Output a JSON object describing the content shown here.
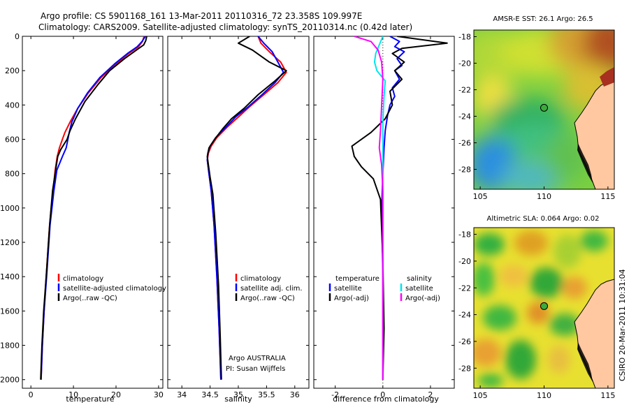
{
  "header": {
    "line1": "Argo profile: CS 5901168_161 13-Mar-2011 20110316_72 23.358S 109.997E",
    "line2": "Climatology: CARS2009. Satellite-adjusted climatology: synTS_20110314.nc (0.42d later)"
  },
  "colors": {
    "climatology": "#ff0000",
    "satellite": "#0000ff",
    "argo": "#000000",
    "salinity_satellite": "#00e5ee",
    "salinity_argo": "#ff00ff",
    "land": "#ffc8a0",
    "coast": "#000000"
  },
  "chart_data": [
    {
      "id": "temperature",
      "type": "line",
      "xlabel": "temperature",
      "xlim": [
        -2,
        31
      ],
      "xticks": [
        0,
        10,
        20,
        30
      ],
      "ylim": [
        0,
        2050
      ],
      "yreversed": true,
      "yticks": [
        0,
        200,
        400,
        600,
        800,
        1000,
        1200,
        1400,
        1600,
        1800,
        2000
      ],
      "legend": [
        "climatology",
        "satellite-adjusted climatology",
        "Argo(..raw -QC)"
      ],
      "series": [
        {
          "name": "climatology",
          "color": "#ff0000",
          "x": [
            26.6,
            26.2,
            25.3,
            23.0,
            20.0,
            16.5,
            13.5,
            11.0,
            9.2,
            8.0,
            7.4,
            6.7,
            6.2,
            5.7,
            5.2,
            4.4,
            3.6,
            3.1,
            2.7,
            2.4
          ],
          "y": [
            0,
            30,
            60,
            100,
            160,
            240,
            330,
            420,
            500,
            560,
            600,
            650,
            700,
            780,
            900,
            1100,
            1400,
            1600,
            1800,
            2000
          ]
        },
        {
          "name": "satellite-adjusted climatology",
          "color": "#0000ff",
          "x": [
            26.9,
            26.1,
            25.0,
            22.7,
            19.7,
            16.2,
            13.3,
            11.0,
            9.6,
            9.0,
            8.7,
            8.3,
            7.4,
            6.1,
            5.4,
            4.5,
            3.7,
            3.1,
            2.7,
            2.4
          ],
          "y": [
            0,
            30,
            60,
            100,
            160,
            240,
            330,
            420,
            500,
            560,
            600,
            650,
            700,
            780,
            900,
            1100,
            1400,
            1600,
            1800,
            2000
          ]
        },
        {
          "name": "Argo(..raw -QC)",
          "color": "#000000",
          "x": [
            27.2,
            27.0,
            26.5,
            24.8,
            22.0,
            18.5,
            15.8,
            12.7,
            10.5,
            9.2,
            8.5,
            7.0,
            6.3,
            6.0,
            5.7,
            5.1,
            4.4,
            3.6,
            3.0,
            2.6,
            2.3
          ],
          "y": [
            0,
            25,
            50,
            80,
            130,
            200,
            280,
            380,
            480,
            550,
            600,
            660,
            700,
            750,
            800,
            900,
            1100,
            1400,
            1600,
            1800,
            2000
          ]
        }
      ]
    },
    {
      "id": "salinity",
      "type": "line",
      "xlabel": "salinity",
      "xlim": [
        33.75,
        36.25
      ],
      "xticks": [
        34,
        34.5,
        35,
        35.5,
        36
      ],
      "ylim": [
        0,
        2050
      ],
      "yreversed": true,
      "legend": [
        "climatology",
        "satellite adj. clim.",
        "Argo(..raw -QC)"
      ],
      "annotations": [
        "Argo AUSTRALIA",
        "PI: Susan Wijffels"
      ],
      "series": [
        {
          "name": "climatology",
          "color": "#ff0000",
          "x": [
            35.35,
            35.4,
            35.55,
            35.75,
            35.85,
            35.7,
            35.45,
            35.2,
            35.0,
            34.8,
            34.62,
            34.52,
            34.47,
            34.45,
            34.48,
            34.52,
            34.57,
            34.62,
            34.66,
            34.69
          ],
          "y": [
            0,
            40,
            90,
            150,
            210,
            270,
            340,
            410,
            470,
            530,
            590,
            640,
            680,
            720,
            800,
            900,
            1100,
            1400,
            1700,
            2000
          ]
        },
        {
          "name": "satellite adj. clim.",
          "color": "#0000ff",
          "x": [
            35.35,
            35.45,
            35.6,
            35.7,
            35.8,
            35.65,
            35.42,
            35.18,
            34.95,
            34.78,
            34.6,
            34.5,
            34.46,
            34.45,
            34.48,
            34.52,
            34.57,
            34.62,
            34.66,
            34.69
          ],
          "y": [
            0,
            40,
            90,
            150,
            210,
            270,
            340,
            410,
            470,
            530,
            590,
            640,
            680,
            720,
            800,
            900,
            1100,
            1400,
            1700,
            2000
          ]
        },
        {
          "name": "Argo(..raw -QC)",
          "color": "#000000",
          "x": [
            35.2,
            35.0,
            35.25,
            35.55,
            35.85,
            35.65,
            35.35,
            35.1,
            34.88,
            34.72,
            34.58,
            34.48,
            34.45,
            34.47,
            34.5,
            34.55,
            34.6,
            34.65,
            34.68,
            34.7
          ],
          "y": [
            0,
            40,
            80,
            150,
            200,
            260,
            340,
            420,
            480,
            540,
            600,
            650,
            700,
            750,
            820,
            920,
            1150,
            1450,
            1750,
            2000
          ]
        }
      ]
    },
    {
      "id": "difference",
      "type": "line",
      "xlabel": "difference from climatology",
      "xlim": [
        -2.9,
        3.0
      ],
      "xticks": [
        -2,
        0,
        2
      ],
      "ylim": [
        0,
        2050
      ],
      "yreversed": true,
      "zero_line": true,
      "legend": [
        "temperature",
        "satellite",
        "Argo(-adj)",
        "salinity",
        "satellite",
        "Argo(-adj)"
      ],
      "series": [
        {
          "name": "satellite",
          "quantity": "temperature",
          "color": "#0000ff",
          "x": [
            0.3,
            0.7,
            0.5,
            0.9,
            0.6,
            0.8,
            0.5,
            0.7,
            0.4,
            0.5,
            0.3,
            0.2,
            0.1,
            0.05,
            0.0,
            -0.05,
            0.0,
            0.0,
            0.0
          ],
          "y": [
            0,
            30,
            60,
            90,
            130,
            170,
            200,
            250,
            300,
            350,
            400,
            460,
            550,
            650,
            800,
            1000,
            1400,
            1800,
            2000
          ]
        },
        {
          "name": "Argo(-adj)",
          "quantity": "temperature",
          "color": "#000000",
          "x": [
            0.6,
            2.7,
            0.8,
            0.4,
            0.9,
            0.5,
            0.8,
            0.3,
            0.4,
            0.1,
            -0.5,
            -1.3,
            -1.2,
            -0.9,
            -0.4,
            -0.1,
            0.0,
            0.05,
            0.0
          ],
          "y": [
            0,
            40,
            70,
            100,
            150,
            200,
            250,
            320,
            400,
            480,
            560,
            640,
            700,
            760,
            830,
            950,
            1300,
            1700,
            2000
          ]
        },
        {
          "name": "satellite",
          "quantity": "salinity",
          "color": "#00e5ee",
          "x": [
            0.0,
            -0.15,
            -0.3,
            -0.35,
            -0.25,
            0.1,
            0.05,
            0.0,
            0.0,
            0.0,
            0.0,
            0.0
          ],
          "y": [
            0,
            50,
            100,
            150,
            200,
            260,
            350,
            500,
            800,
            1200,
            1600,
            2000
          ]
        },
        {
          "name": "Argo(-adj)",
          "quantity": "salinity",
          "color": "#ff00ff",
          "x": [
            -1.2,
            -0.5,
            -0.2,
            -0.05,
            0.0,
            -0.05,
            -0.1,
            -0.15,
            -0.05,
            0.0,
            0.0,
            0.0
          ],
          "y": [
            0,
            30,
            80,
            150,
            250,
            400,
            550,
            650,
            750,
            900,
            1400,
            2000
          ]
        }
      ]
    }
  ],
  "maps": [
    {
      "title": "AMSR-E SST: 26.1 Argo: 26.5",
      "xlim": [
        104.5,
        115.5
      ],
      "ylim": [
        -29.5,
        -17.5
      ],
      "xticks": [
        105,
        110,
        115
      ],
      "yticks": [
        -18,
        -20,
        -22,
        -24,
        -26,
        -28
      ],
      "float_position": [
        110.0,
        -23.36
      ]
    },
    {
      "title": "Altimetric SLA: 0.064 Argo: 0.02",
      "xlim": [
        104.5,
        115.5
      ],
      "ylim": [
        -29.5,
        -17.5
      ],
      "xticks": [
        105,
        110,
        115
      ],
      "yticks": [
        -18,
        -20,
        -22,
        -24,
        -26,
        -28
      ],
      "float_position": [
        110.0,
        -23.36
      ]
    }
  ],
  "footer": {
    "stamp": "CSIRO 20-Mar-2011 10:31:04"
  }
}
